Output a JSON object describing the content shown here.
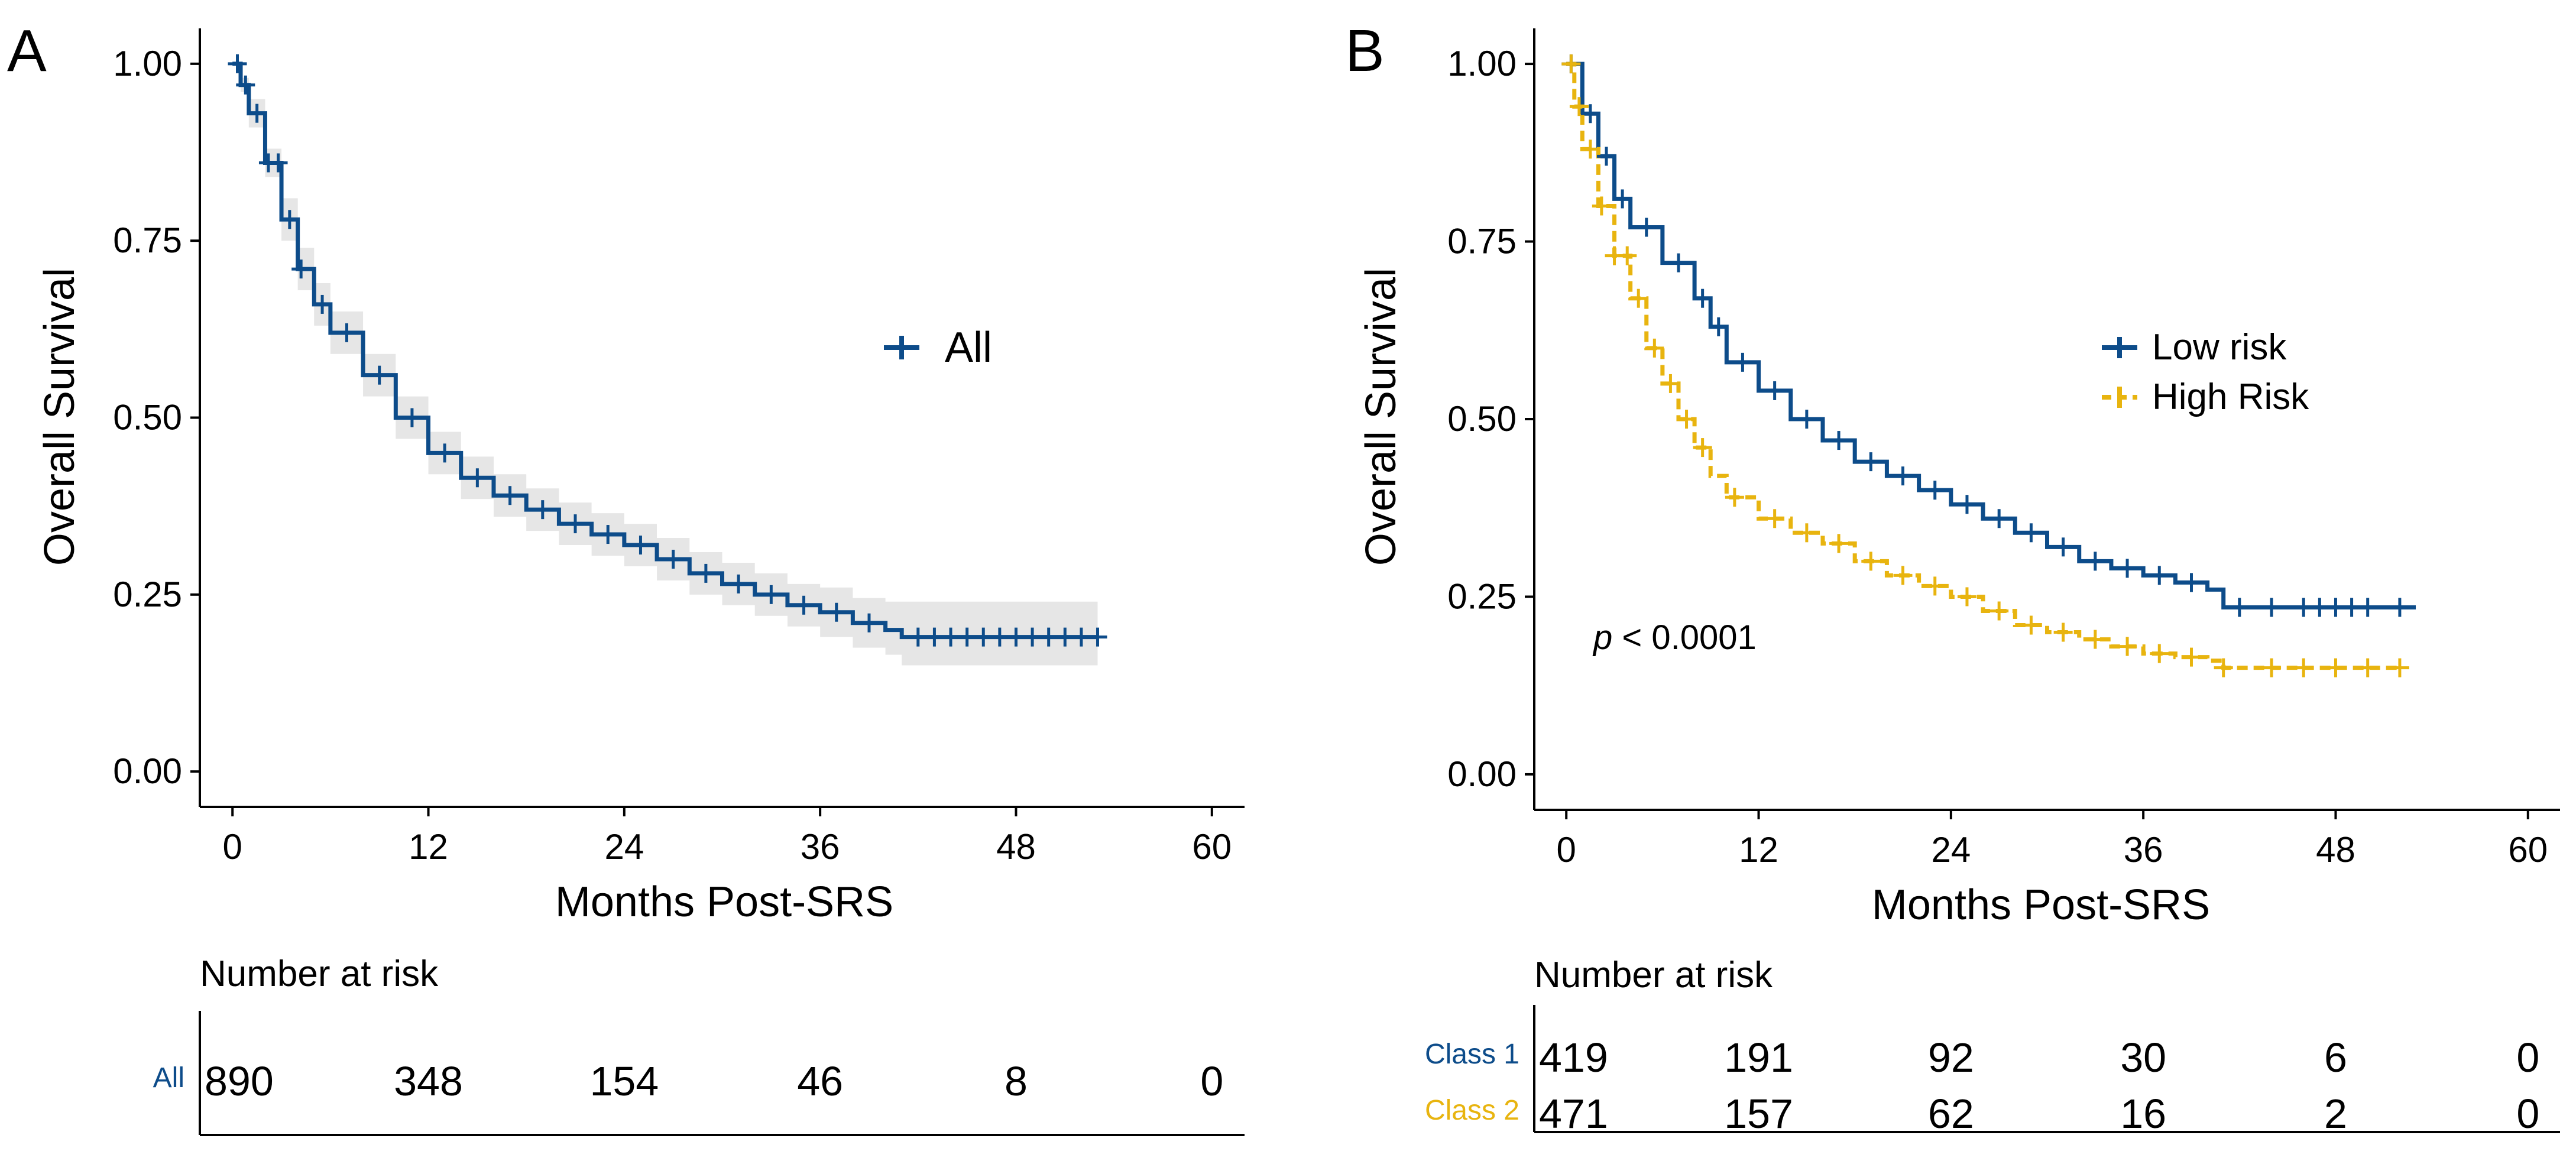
{
  "colors": {
    "low_risk": "#0d4c8a",
    "high_risk": "#e8b40f",
    "ci_band": "#e6e6e6",
    "axis": "#000000"
  },
  "chart_data": [
    {
      "panel_label": "A",
      "type": "line",
      "subtype": "kaplan-meier",
      "title": "",
      "xlabel": "Months Post-SRS",
      "ylabel": "Overall Survival",
      "xlim": [
        -2,
        62
      ],
      "ylim": [
        -0.05,
        1.05
      ],
      "xticks": [
        0,
        12,
        24,
        36,
        48,
        60
      ],
      "xtick_labels": [
        "0",
        "12",
        "24",
        "36",
        "48",
        "60"
      ],
      "yticks": [
        0,
        0.25,
        0.5,
        0.75,
        1.0
      ],
      "ytick_labels": [
        "0.00",
        "0.25",
        "0.50",
        "0.75",
        "1.00"
      ],
      "legend_position": "right",
      "series": [
        {
          "name": "All",
          "color": "#0d4c8a",
          "dash": false,
          "x": [
            0,
            0.5,
            1,
            2,
            3,
            4,
            5,
            6,
            8,
            10,
            12,
            14,
            16,
            18,
            20,
            22,
            24,
            26,
            28,
            30,
            32,
            34,
            36,
            38,
            40,
            41,
            42,
            45,
            48,
            50,
            53
          ],
          "y": [
            1.0,
            0.97,
            0.93,
            0.86,
            0.78,
            0.71,
            0.66,
            0.62,
            0.56,
            0.5,
            0.45,
            0.415,
            0.39,
            0.37,
            0.35,
            0.335,
            0.32,
            0.3,
            0.28,
            0.265,
            0.25,
            0.235,
            0.225,
            0.21,
            0.2,
            0.19,
            0.19,
            0.19,
            0.19,
            0.19,
            0.19
          ],
          "ci_lower": [
            1.0,
            0.96,
            0.91,
            0.84,
            0.75,
            0.68,
            0.63,
            0.59,
            0.53,
            0.47,
            0.42,
            0.385,
            0.36,
            0.34,
            0.32,
            0.305,
            0.29,
            0.27,
            0.25,
            0.235,
            0.22,
            0.205,
            0.19,
            0.175,
            0.165,
            0.15,
            0.15,
            0.15,
            0.15,
            0.15,
            0.15
          ],
          "ci_upper": [
            1.0,
            0.98,
            0.95,
            0.88,
            0.81,
            0.74,
            0.69,
            0.65,
            0.59,
            0.53,
            0.48,
            0.445,
            0.42,
            0.4,
            0.38,
            0.365,
            0.35,
            0.33,
            0.31,
            0.295,
            0.28,
            0.265,
            0.26,
            0.245,
            0.24,
            0.24,
            0.24,
            0.24,
            0.24,
            0.24,
            0.24
          ],
          "censor_x": [
            0.3,
            0.8,
            1.5,
            2.2,
            2.8,
            3.5,
            4.2,
            5.5,
            7,
            9,
            11,
            13,
            15,
            17,
            19,
            21,
            23,
            25,
            27,
            29,
            31,
            33,
            35,
            37,
            39,
            42,
            43,
            44,
            45,
            46,
            47,
            48,
            49,
            50,
            51,
            52,
            53
          ]
        }
      ],
      "risk_table": {
        "header": "Number at risk",
        "rows": [
          {
            "label": "All",
            "color": "#0d4c8a",
            "values": [
              "890",
              "348",
              "154",
              "46",
              "8",
              "0"
            ]
          }
        ]
      }
    },
    {
      "panel_label": "B",
      "type": "line",
      "subtype": "kaplan-meier",
      "title": "",
      "xlabel": "Months Post-SRS",
      "ylabel": "Overall Survival",
      "xlim": [
        -2,
        62
      ],
      "ylim": [
        -0.05,
        1.05
      ],
      "xticks": [
        0,
        12,
        24,
        36,
        48,
        60
      ],
      "xtick_labels": [
        "0",
        "12",
        "24",
        "36",
        "48",
        "60"
      ],
      "yticks": [
        0,
        0.25,
        0.5,
        0.75,
        1.0
      ],
      "ytick_labels": [
        "0.00",
        "0.25",
        "0.50",
        "0.75",
        "1.00"
      ],
      "legend_position": "right",
      "annotation": {
        "italic": "p",
        "text": " < 0.0001"
      },
      "series": [
        {
          "name": "Low risk",
          "color": "#0d4c8a",
          "dash": false,
          "x": [
            0,
            1,
            2,
            3,
            4,
            6,
            8,
            9,
            10,
            12,
            14,
            16,
            18,
            20,
            22,
            24,
            26,
            28,
            30,
            32,
            34,
            36,
            38,
            40,
            41,
            42,
            44,
            46,
            48,
            50,
            53
          ],
          "y": [
            1.0,
            0.93,
            0.87,
            0.81,
            0.77,
            0.72,
            0.67,
            0.63,
            0.58,
            0.54,
            0.5,
            0.47,
            0.44,
            0.42,
            0.4,
            0.38,
            0.36,
            0.34,
            0.32,
            0.3,
            0.29,
            0.28,
            0.27,
            0.26,
            0.235,
            0.235,
            0.235,
            0.235,
            0.235,
            0.235,
            0.235
          ],
          "censor_x": [
            0.3,
            1.5,
            2.5,
            3.5,
            5,
            7,
            8.5,
            9.5,
            11,
            13,
            15,
            17,
            19,
            21,
            23,
            25,
            27,
            29,
            31,
            33,
            35,
            37,
            39,
            42,
            44,
            46,
            47,
            48,
            49,
            50,
            52
          ]
        },
        {
          "name": "High Risk",
          "color": "#e8b40f",
          "dash": true,
          "x": [
            0,
            0.5,
            1,
            2,
            3,
            4,
            5,
            6,
            7,
            8,
            9,
            10,
            12,
            14,
            16,
            18,
            20,
            22,
            24,
            26,
            28,
            30,
            32,
            34,
            36,
            38,
            40,
            41,
            44,
            48,
            52
          ],
          "y": [
            1.0,
            0.94,
            0.88,
            0.8,
            0.73,
            0.67,
            0.6,
            0.55,
            0.5,
            0.46,
            0.42,
            0.39,
            0.36,
            0.34,
            0.325,
            0.3,
            0.28,
            0.265,
            0.25,
            0.23,
            0.21,
            0.2,
            0.19,
            0.18,
            0.17,
            0.165,
            0.16,
            0.15,
            0.15,
            0.15,
            0.15
          ],
          "censor_x": [
            0.3,
            0.8,
            1.5,
            2.2,
            3,
            3.8,
            4.5,
            5.5,
            6.5,
            7.5,
            8.5,
            10.5,
            13,
            15,
            17,
            19,
            21,
            23,
            25,
            27,
            29,
            31,
            33,
            35,
            37,
            39,
            41,
            44,
            46,
            48,
            50,
            52
          ]
        }
      ],
      "risk_table": {
        "header": "Number at risk",
        "rows": [
          {
            "label": "Class 1",
            "color": "#0d4c8a",
            "values": [
              "419",
              "191",
              "92",
              "30",
              "6",
              "0"
            ]
          },
          {
            "label": "Class 2",
            "color": "#e8b40f",
            "values": [
              "471",
              "157",
              "62",
              "16",
              "2",
              "0"
            ]
          }
        ]
      }
    }
  ]
}
